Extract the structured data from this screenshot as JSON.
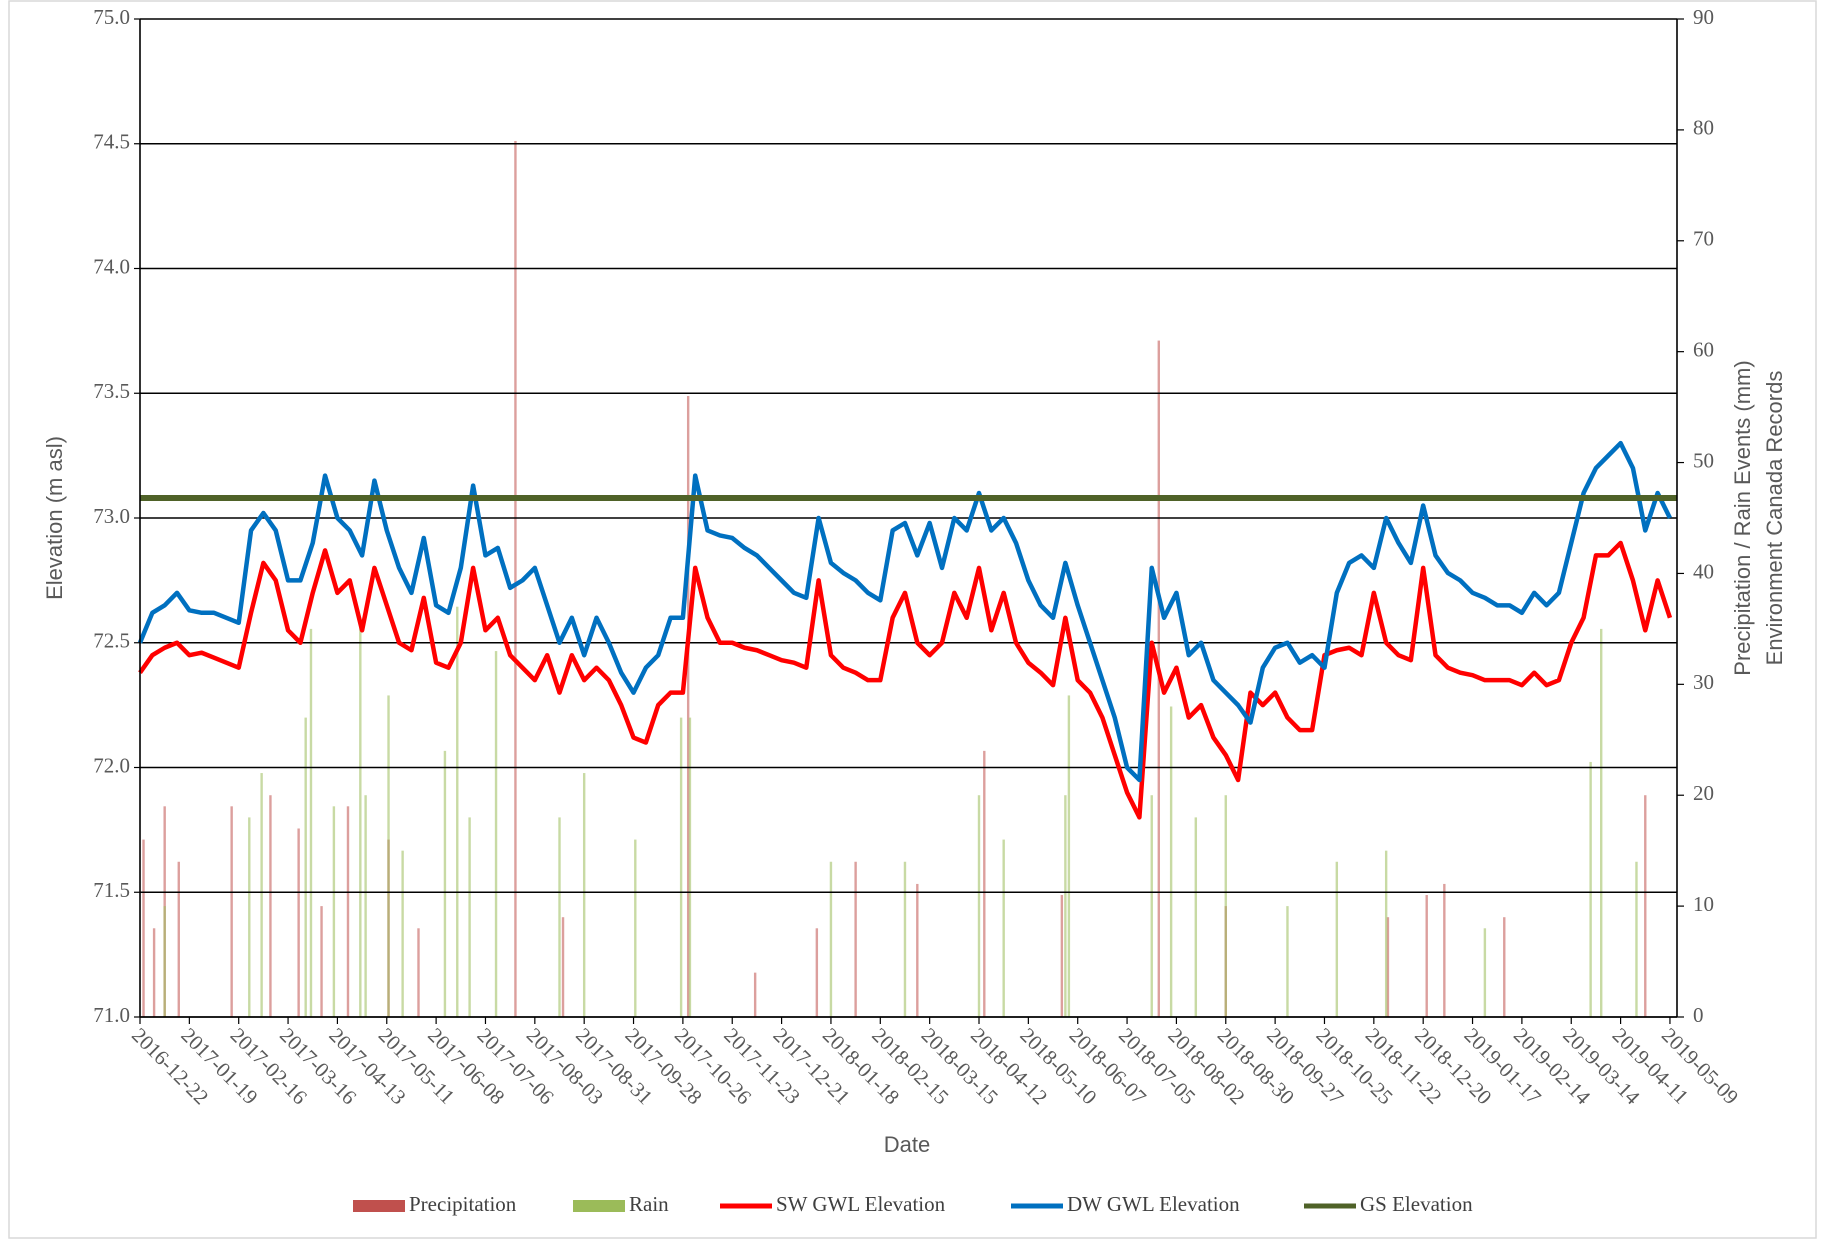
{
  "chart_data": {
    "type": "line",
    "xlabel": "Date",
    "ylabel": "Elevation (m asl)",
    "y2label": [
      "Precipitation / Rain Events (mm)",
      "Environment Canada Records"
    ],
    "xlim": [
      "2016-12-22",
      "2019-05-13"
    ],
    "xticks": [
      "2016-12-22",
      "2017-01-19",
      "2017-02-16",
      "2017-03-16",
      "2017-04-13",
      "2017-05-11",
      "2017-06-08",
      "2017-07-06",
      "2017-08-03",
      "2017-08-31",
      "2017-09-28",
      "2017-10-26",
      "2017-11-23",
      "2017-12-21",
      "2018-01-18",
      "2018-02-15",
      "2018-03-15",
      "2018-04-12",
      "2018-05-10",
      "2018-06-07",
      "2018-07-05",
      "2018-08-02",
      "2018-08-30",
      "2018-09-27",
      "2018-10-25",
      "2018-11-22",
      "2018-12-20",
      "2019-01-17",
      "2019-02-14",
      "2019-03-14",
      "2019-04-11",
      "2019-05-09"
    ],
    "ylim": [
      71,
      75
    ],
    "yticks": [
      {
        "value": 71,
        "label": "71.0"
      },
      {
        "value": 71.5,
        "label": "71.5"
      },
      {
        "value": 72,
        "label": "72.0"
      },
      {
        "value": 72.5,
        "label": "72.5"
      },
      {
        "value": 73,
        "label": "73.0"
      },
      {
        "value": 73.5,
        "label": "73.5"
      },
      {
        "value": 74,
        "label": "74.0"
      },
      {
        "value": 74.5,
        "label": "74.5"
      },
      {
        "value": 75,
        "label": "75.0"
      }
    ],
    "y2lim": [
      0,
      90
    ],
    "y2ticks": [
      0,
      10,
      20,
      30,
      40,
      50,
      60,
      70,
      80,
      90
    ],
    "grid": true,
    "legend": "bottom",
    "x": [
      "2016-12-22",
      "2016-12-29",
      "2017-01-05",
      "2017-01-12",
      "2017-01-19",
      "2017-01-26",
      "2017-02-02",
      "2017-02-09",
      "2017-02-16",
      "2017-02-23",
      "2017-03-02",
      "2017-03-09",
      "2017-03-16",
      "2017-03-23",
      "2017-03-30",
      "2017-04-06",
      "2017-04-13",
      "2017-04-20",
      "2017-04-27",
      "2017-05-04",
      "2017-05-11",
      "2017-05-18",
      "2017-05-25",
      "2017-06-01",
      "2017-06-08",
      "2017-06-15",
      "2017-06-22",
      "2017-06-29",
      "2017-07-06",
      "2017-07-13",
      "2017-07-20",
      "2017-07-27",
      "2017-08-03",
      "2017-08-10",
      "2017-08-17",
      "2017-08-24",
      "2017-08-31",
      "2017-09-07",
      "2017-09-14",
      "2017-09-21",
      "2017-09-28",
      "2017-10-05",
      "2017-10-12",
      "2017-10-19",
      "2017-10-26",
      "2017-11-02",
      "2017-11-09",
      "2017-11-16",
      "2017-11-23",
      "2017-11-30",
      "2017-12-07",
      "2017-12-14",
      "2017-12-21",
      "2017-12-28",
      "2018-01-04",
      "2018-01-11",
      "2018-01-18",
      "2018-01-25",
      "2018-02-01",
      "2018-02-08",
      "2018-02-15",
      "2018-02-22",
      "2018-03-01",
      "2018-03-08",
      "2018-03-15",
      "2018-03-22",
      "2018-03-29",
      "2018-04-05",
      "2018-04-12",
      "2018-04-19",
      "2018-04-26",
      "2018-05-03",
      "2018-05-10",
      "2018-05-17",
      "2018-05-24",
      "2018-05-31",
      "2018-06-07",
      "2018-06-14",
      "2018-06-21",
      "2018-06-28",
      "2018-07-05",
      "2018-07-12",
      "2018-07-19",
      "2018-07-26",
      "2018-08-02",
      "2018-08-09",
      "2018-08-16",
      "2018-08-23",
      "2018-08-30",
      "2018-09-06",
      "2018-09-13",
      "2018-09-20",
      "2018-09-27",
      "2018-10-04",
      "2018-10-11",
      "2018-10-18",
      "2018-10-25",
      "2018-11-01",
      "2018-11-08",
      "2018-11-15",
      "2018-11-22",
      "2018-11-29",
      "2018-12-06",
      "2018-12-13",
      "2018-12-20",
      "2018-12-27",
      "2019-01-03",
      "2019-01-10",
      "2019-01-17",
      "2019-01-24",
      "2019-01-31",
      "2019-02-07",
      "2019-02-14",
      "2019-02-21",
      "2019-02-28",
      "2019-03-07",
      "2019-03-14",
      "2019-03-21",
      "2019-03-28",
      "2019-04-04",
      "2019-04-11",
      "2019-04-18",
      "2019-04-25",
      "2019-05-02",
      "2019-05-09"
    ],
    "series": [
      {
        "name": "Precipitation",
        "type": "bar",
        "axis": "y2",
        "color": "#c0504d",
        "x": [
          "2016-12-24",
          "2016-12-30",
          "2017-01-05",
          "2017-01-13",
          "2017-02-12",
          "2017-03-06",
          "2017-03-22",
          "2017-04-04",
          "2017-04-19",
          "2017-05-12",
          "2017-05-29",
          "2017-07-23",
          "2017-08-19",
          "2017-10-29",
          "2017-12-06",
          "2018-01-10",
          "2018-02-01",
          "2018-03-08",
          "2018-04-15",
          "2018-05-29",
          "2018-07-23",
          "2018-08-30",
          "2018-11-30",
          "2018-12-22",
          "2019-01-01",
          "2019-02-04",
          "2019-04-25"
        ],
        "values": [
          16,
          8,
          19,
          14,
          19,
          20,
          17,
          10,
          19,
          16,
          8,
          79,
          9,
          56,
          4,
          8,
          14,
          12,
          24,
          11,
          61,
          10,
          9,
          11,
          12,
          9,
          20
        ]
      },
      {
        "name": "Rain",
        "type": "bar",
        "axis": "y2",
        "color": "#9bbb59",
        "x": [
          "2017-01-05",
          "2017-02-22",
          "2017-03-01",
          "2017-03-26",
          "2017-03-29",
          "2017-04-11",
          "2017-04-26",
          "2017-04-29",
          "2017-05-12",
          "2017-05-20",
          "2017-06-13",
          "2017-06-20",
          "2017-06-27",
          "2017-07-12",
          "2017-08-17",
          "2017-08-31",
          "2017-09-29",
          "2017-10-25",
          "2017-10-30",
          "2018-01-18",
          "2018-03-01",
          "2018-04-12",
          "2018-04-26",
          "2018-05-31",
          "2018-06-02",
          "2018-07-19",
          "2018-07-30",
          "2018-08-13",
          "2018-08-30",
          "2018-10-04",
          "2018-11-01",
          "2018-11-29",
          "2019-01-24",
          "2019-03-25",
          "2019-03-31",
          "2019-04-20"
        ],
        "values": [
          10,
          18,
          22,
          27,
          35,
          19,
          36,
          20,
          29,
          15,
          24,
          37,
          18,
          33,
          18,
          22,
          16,
          27,
          27,
          14,
          14,
          20,
          16,
          20,
          29,
          20,
          28,
          18,
          20,
          10,
          14,
          15,
          8,
          23,
          35,
          14
        ]
      },
      {
        "name": "SW GWL Elevation",
        "color": "#ff0000",
        "values": [
          72.38,
          72.45,
          72.48,
          72.5,
          72.45,
          72.46,
          72.44,
          72.42,
          72.4,
          72.62,
          72.82,
          72.75,
          72.55,
          72.5,
          72.7,
          72.87,
          72.7,
          72.75,
          72.55,
          72.8,
          72.65,
          72.5,
          72.47,
          72.68,
          72.42,
          72.4,
          72.5,
          72.8,
          72.55,
          72.6,
          72.45,
          72.4,
          72.35,
          72.45,
          72.3,
          72.45,
          72.35,
          72.4,
          72.35,
          72.25,
          72.12,
          72.1,
          72.25,
          72.3,
          72.3,
          72.8,
          72.6,
          72.5,
          72.5,
          72.48,
          72.47,
          72.45,
          72.43,
          72.42,
          72.4,
          72.75,
          72.45,
          72.4,
          72.38,
          72.35,
          72.35,
          72.6,
          72.7,
          72.5,
          72.45,
          72.5,
          72.7,
          72.6,
          72.8,
          72.55,
          72.7,
          72.5,
          72.42,
          72.38,
          72.33,
          72.6,
          72.35,
          72.3,
          72.2,
          72.05,
          71.9,
          71.8,
          72.5,
          72.3,
          72.4,
          72.2,
          72.25,
          72.12,
          72.05,
          71.95,
          72.3,
          72.25,
          72.3,
          72.2,
          72.15,
          72.15,
          72.45,
          72.47,
          72.48,
          72.45,
          72.7,
          72.5,
          72.45,
          72.43,
          72.8,
          72.45,
          72.4,
          72.38,
          72.37,
          72.35,
          72.35,
          72.35,
          72.33,
          72.38,
          72.33,
          72.35,
          72.5,
          72.6,
          72.85,
          72.85,
          72.9,
          72.75,
          72.55,
          72.75,
          72.6
        ]
      },
      {
        "name": "DW GWL Elevation",
        "color": "#0070c0",
        "values": [
          72.5,
          72.62,
          72.65,
          72.7,
          72.63,
          72.62,
          72.62,
          72.6,
          72.58,
          72.95,
          73.02,
          72.95,
          72.75,
          72.75,
          72.9,
          73.17,
          73.0,
          72.95,
          72.85,
          73.15,
          72.95,
          72.8,
          72.7,
          72.92,
          72.65,
          72.62,
          72.8,
          73.13,
          72.85,
          72.88,
          72.72,
          72.75,
          72.8,
          72.65,
          72.5,
          72.6,
          72.45,
          72.6,
          72.5,
          72.38,
          72.3,
          72.4,
          72.45,
          72.6,
          72.6,
          73.17,
          72.95,
          72.93,
          72.92,
          72.88,
          72.85,
          72.8,
          72.75,
          72.7,
          72.68,
          73.0,
          72.82,
          72.78,
          72.75,
          72.7,
          72.67,
          72.95,
          72.98,
          72.85,
          72.98,
          72.8,
          73.0,
          72.95,
          73.1,
          72.95,
          73.0,
          72.9,
          72.75,
          72.65,
          72.6,
          72.82,
          72.65,
          72.5,
          72.35,
          72.2,
          72.0,
          71.95,
          72.8,
          72.6,
          72.7,
          72.45,
          72.5,
          72.35,
          72.3,
          72.25,
          72.18,
          72.4,
          72.48,
          72.5,
          72.42,
          72.45,
          72.4,
          72.7,
          72.82,
          72.85,
          72.8,
          73.0,
          72.9,
          72.82,
          73.05,
          72.85,
          72.78,
          72.75,
          72.7,
          72.68,
          72.65,
          72.65,
          72.62,
          72.7,
          72.65,
          72.7,
          72.9,
          73.1,
          73.2,
          73.25,
          73.3,
          73.2,
          72.95,
          73.1,
          73.0
        ]
      },
      {
        "name": "GS Elevation",
        "color": "#4f6228",
        "x": [
          "2016-12-22",
          "2019-05-13"
        ],
        "values": [
          73.08,
          73.08
        ]
      }
    ]
  }
}
